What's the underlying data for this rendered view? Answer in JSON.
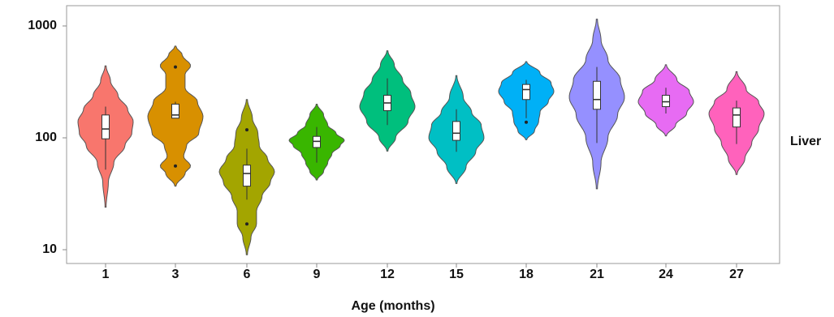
{
  "chart_data": {
    "type": "violin",
    "xlabel": "Age (months)",
    "ylabel": "",
    "facet_label": "Liver",
    "y_scale": "log",
    "ylim": [
      8,
      1600
    ],
    "y_ticks": [
      10,
      100,
      1000
    ],
    "y_tick_labels": [
      "10",
      "100",
      "1000"
    ],
    "categories": [
      "1",
      "3",
      "6",
      "9",
      "12",
      "15",
      "18",
      "21",
      "24",
      "27"
    ],
    "grid": false,
    "legend": "none",
    "series": [
      {
        "category": "1",
        "color": "#F8766D",
        "range": [
          24,
          440
        ],
        "q1": 98,
        "median": 120,
        "q3": 160,
        "whisker_low": 52,
        "whisker_high": 190,
        "outliers": [],
        "density": [
          [
            24,
            0.02
          ],
          [
            40,
            0.1
          ],
          [
            60,
            0.3
          ],
          [
            85,
            0.7
          ],
          [
            110,
            0.95
          ],
          [
            140,
            1.0
          ],
          [
            180,
            0.8
          ],
          [
            240,
            0.45
          ],
          [
            320,
            0.18
          ],
          [
            440,
            0.02
          ]
        ]
      },
      {
        "category": "3",
        "color": "#D89000",
        "range": [
          37,
          660
        ],
        "q1": 150,
        "median": 160,
        "q3": 200,
        "whisker_low": 150,
        "whisker_high": 210,
        "outliers": [
          56,
          430
        ],
        "density": [
          [
            37,
            0.02
          ],
          [
            48,
            0.35
          ],
          [
            56,
            0.55
          ],
          [
            68,
            0.3
          ],
          [
            85,
            0.4
          ],
          [
            110,
            0.85
          ],
          [
            155,
            1.0
          ],
          [
            210,
            0.8
          ],
          [
            280,
            0.35
          ],
          [
            370,
            0.35
          ],
          [
            440,
            0.55
          ],
          [
            550,
            0.25
          ],
          [
            660,
            0.02
          ]
        ]
      },
      {
        "category": "6",
        "color": "#A3A500",
        "range": [
          9,
          220
        ],
        "q1": 37,
        "median": 48,
        "q3": 57,
        "whisker_low": 28,
        "whisker_high": 80,
        "outliers": [
          17,
          118
        ],
        "density": [
          [
            9,
            0.02
          ],
          [
            13,
            0.15
          ],
          [
            17,
            0.35
          ],
          [
            22,
            0.35
          ],
          [
            30,
            0.55
          ],
          [
            40,
            0.85
          ],
          [
            50,
            1.0
          ],
          [
            65,
            0.75
          ],
          [
            85,
            0.45
          ],
          [
            110,
            0.4
          ],
          [
            150,
            0.2
          ],
          [
            220,
            0.02
          ]
        ]
      },
      {
        "category": "9",
        "color": "#39B600",
        "range": [
          42,
          200
        ],
        "q1": 82,
        "median": 93,
        "q3": 103,
        "whisker_low": 60,
        "whisker_high": 125,
        "outliers": [],
        "density": [
          [
            42,
            0.02
          ],
          [
            50,
            0.25
          ],
          [
            60,
            0.4
          ],
          [
            72,
            0.55
          ],
          [
            85,
            0.85
          ],
          [
            95,
            1.0
          ],
          [
            110,
            0.7
          ],
          [
            130,
            0.4
          ],
          [
            160,
            0.25
          ],
          [
            200,
            0.02
          ]
        ]
      },
      {
        "category": "12",
        "color": "#00BF7D",
        "range": [
          76,
          600
        ],
        "q1": 175,
        "median": 205,
        "q3": 240,
        "whisker_low": 130,
        "whisker_high": 340,
        "outliers": [],
        "density": [
          [
            76,
            0.02
          ],
          [
            100,
            0.3
          ],
          [
            140,
            0.75
          ],
          [
            190,
            1.0
          ],
          [
            250,
            0.85
          ],
          [
            330,
            0.55
          ],
          [
            450,
            0.25
          ],
          [
            600,
            0.02
          ]
        ]
      },
      {
        "category": "15",
        "color": "#00BFC4",
        "range": [
          39,
          360
        ],
        "q1": 95,
        "median": 110,
        "q3": 140,
        "whisker_low": 75,
        "whisker_high": 180,
        "outliers": [],
        "density": [
          [
            39,
            0.02
          ],
          [
            55,
            0.35
          ],
          [
            75,
            0.7
          ],
          [
            100,
            1.0
          ],
          [
            130,
            0.9
          ],
          [
            170,
            0.55
          ],
          [
            230,
            0.25
          ],
          [
            360,
            0.02
          ]
        ]
      },
      {
        "category": "18",
        "color": "#00B0F6",
        "range": [
          96,
          480
        ],
        "q1": 220,
        "median": 270,
        "q3": 300,
        "whisker_low": 150,
        "whisker_high": 330,
        "outliers": [
          138
        ],
        "density": [
          [
            96,
            0.02
          ],
          [
            115,
            0.3
          ],
          [
            140,
            0.45
          ],
          [
            170,
            0.5
          ],
          [
            210,
            0.8
          ],
          [
            260,
            1.0
          ],
          [
            310,
            0.9
          ],
          [
            380,
            0.5
          ],
          [
            480,
            0.02
          ]
        ]
      },
      {
        "category": "21",
        "color": "#9590FF",
        "range": [
          35,
          1150
        ],
        "q1": 180,
        "median": 220,
        "q3": 320,
        "whisker_low": 90,
        "whisker_high": 430,
        "outliers": [],
        "density": [
          [
            35,
            0.02
          ],
          [
            60,
            0.15
          ],
          [
            100,
            0.4
          ],
          [
            160,
            0.75
          ],
          [
            230,
            1.0
          ],
          [
            330,
            0.85
          ],
          [
            500,
            0.4
          ],
          [
            750,
            0.15
          ],
          [
            1150,
            0.02
          ]
        ]
      },
      {
        "category": "24",
        "color": "#E76BF3",
        "range": [
          104,
          450
        ],
        "q1": 190,
        "median": 210,
        "q3": 240,
        "whisker_low": 165,
        "whisker_high": 280,
        "outliers": [],
        "density": [
          [
            104,
            0.02
          ],
          [
            130,
            0.35
          ],
          [
            165,
            0.75
          ],
          [
            210,
            1.0
          ],
          [
            260,
            0.85
          ],
          [
            330,
            0.4
          ],
          [
            450,
            0.02
          ]
        ]
      },
      {
        "category": "27",
        "color": "#FF62BC",
        "range": [
          47,
          390
        ],
        "q1": 125,
        "median": 160,
        "q3": 185,
        "whisker_low": 88,
        "whisker_high": 215,
        "outliers": [],
        "density": [
          [
            47,
            0.02
          ],
          [
            65,
            0.3
          ],
          [
            90,
            0.55
          ],
          [
            120,
            0.8
          ],
          [
            165,
            1.0
          ],
          [
            210,
            0.8
          ],
          [
            270,
            0.35
          ],
          [
            390,
            0.02
          ]
        ]
      }
    ]
  }
}
